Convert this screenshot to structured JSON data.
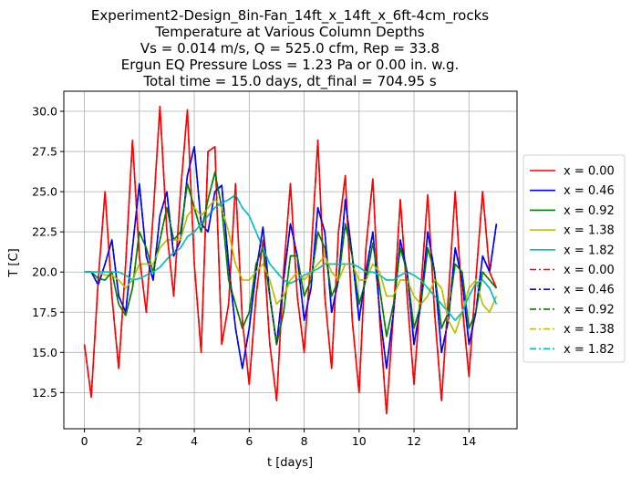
{
  "chart_data": {
    "type": "line",
    "title_lines": [
      "Experiment2-Design_8in-Fan_14ft_x_14ft_x_6ft-4cm_rocks",
      "Temperature at Various Column Depths",
      "Vs = 0.014 m/s, Q = 525.0 cfm, Rep = 33.8",
      "Ergun EQ Pressure Loss = 1.23 Pa or 0.00 in. w.g.",
      "Total time = 15.0 days, dt_final = 704.95 s"
    ],
    "xlabel": "t [days]",
    "ylabel": "T [C]",
    "xlim": [
      -0.75,
      15.75
    ],
    "ylim": [
      10.25,
      31.25
    ],
    "xticks": [
      0,
      2,
      4,
      6,
      8,
      10,
      12,
      14
    ],
    "xtick_labels": [
      "0",
      "2",
      "4",
      "6",
      "8",
      "10",
      "12",
      "14"
    ],
    "yticks": [
      12.5,
      15.0,
      17.5,
      20.0,
      22.5,
      25.0,
      27.5,
      30.0
    ],
    "ytick_labels": [
      "12.5",
      "15.0",
      "17.5",
      "20.0",
      "22.5",
      "25.0",
      "27.5",
      "30.0"
    ],
    "grid": true,
    "legend_placement": "right-outside",
    "x": [
      0,
      0.25,
      0.5,
      0.75,
      1,
      1.25,
      1.5,
      1.75,
      2,
      2.25,
      2.5,
      2.75,
      3,
      3.25,
      3.5,
      3.75,
      4,
      4.25,
      4.5,
      4.75,
      5,
      5.25,
      5.5,
      5.75,
      6,
      6.25,
      6.5,
      6.75,
      7,
      7.25,
      7.5,
      7.75,
      8,
      8.25,
      8.5,
      8.75,
      9,
      9.25,
      9.5,
      9.75,
      10,
      10.25,
      10.5,
      10.75,
      11,
      11.25,
      11.5,
      11.75,
      12,
      12.25,
      12.5,
      12.75,
      13,
      13.25,
      13.5,
      13.75,
      14,
      14.25,
      14.5,
      14.75,
      15
    ],
    "series": [
      {
        "name": "x = 0.00",
        "color": "#ff0000",
        "dash": "solid",
        "values": [
          15.5,
          12.2,
          19.5,
          25.0,
          18.5,
          14.0,
          20.5,
          28.2,
          21.0,
          17.5,
          23.5,
          30.3,
          22.5,
          18.5,
          25.0,
          30.1,
          20.5,
          15.0,
          27.5,
          27.8,
          15.5,
          18.0,
          25.5,
          17.0,
          13.0,
          18.5,
          22.0,
          15.5,
          12.0,
          20.0,
          25.5,
          18.5,
          15.0,
          21.0,
          28.2,
          18.5,
          14.0,
          22.5,
          26.0,
          17.0,
          12.5,
          21.5,
          25.8,
          17.0,
          11.2,
          17.5,
          24.5,
          18.5,
          13.0,
          19.0,
          24.8,
          17.5,
          12.0,
          18.5,
          25.0,
          18.0,
          13.5,
          19.5,
          25.0,
          20.0,
          19.0
        ]
      },
      {
        "name": "x = 0.46",
        "color": "#0000ff",
        "dash": "solid",
        "values": [
          20.0,
          20.0,
          19.2,
          20.5,
          22.0,
          18.5,
          17.5,
          21.5,
          25.5,
          21.0,
          19.5,
          23.5,
          25.0,
          21.0,
          22.0,
          26.0,
          27.8,
          23.0,
          22.5,
          25.0,
          25.4,
          20.5,
          16.5,
          14.0,
          16.5,
          20.0,
          22.8,
          18.5,
          15.5,
          19.5,
          23.0,
          21.0,
          17.0,
          19.0,
          24.0,
          22.5,
          17.5,
          19.5,
          24.5,
          21.0,
          17.0,
          20.0,
          22.5,
          17.5,
          14.0,
          17.5,
          22.0,
          20.0,
          15.5,
          18.0,
          22.5,
          20.0,
          15.0,
          17.0,
          21.5,
          19.5,
          15.5,
          17.5,
          21.0,
          20.0,
          23.0
        ]
      },
      {
        "name": "x = 0.92",
        "color": "#008000",
        "dash": "solid",
        "values": [
          20.0,
          20.0,
          19.6,
          19.5,
          20.0,
          18.0,
          17.3,
          19.0,
          22.5,
          21.5,
          20.0,
          22.0,
          24.0,
          22.0,
          22.5,
          25.5,
          24.0,
          22.5,
          24.5,
          26.2,
          24.0,
          19.5,
          18.0,
          16.5,
          17.5,
          20.5,
          21.5,
          18.5,
          15.5,
          17.5,
          21.0,
          21.0,
          18.5,
          19.5,
          22.5,
          21.5,
          18.5,
          19.5,
          23.0,
          21.0,
          18.0,
          19.5,
          21.8,
          19.0,
          16.0,
          18.0,
          21.5,
          20.0,
          16.5,
          18.0,
          21.5,
          20.0,
          16.5,
          17.5,
          20.5,
          20.0,
          16.5,
          17.5,
          20.0,
          19.5,
          19.0
        ]
      },
      {
        "name": "x = 1.38",
        "color": "#bfbf00",
        "dash": "solid",
        "values": [
          20.0,
          20.0,
          20.0,
          19.8,
          19.8,
          19.5,
          19.0,
          19.5,
          20.5,
          20.5,
          20.5,
          21.5,
          22.0,
          22.0,
          22.0,
          23.5,
          24.0,
          23.5,
          24.0,
          24.5,
          24.0,
          22.5,
          20.5,
          19.5,
          19.5,
          20.0,
          20.5,
          19.5,
          18.0,
          18.5,
          19.5,
          20.0,
          19.5,
          20.0,
          20.5,
          21.0,
          20.0,
          19.5,
          20.5,
          20.5,
          19.5,
          19.5,
          20.5,
          20.0,
          18.5,
          18.5,
          19.5,
          19.5,
          18.5,
          18.0,
          18.5,
          19.5,
          19.0,
          17.0,
          16.2,
          17.5,
          19.0,
          19.5,
          18.0,
          17.5,
          18.5
        ]
      },
      {
        "name": "x = 1.82",
        "color": "#00bfbf",
        "dash": "solid",
        "values": [
          20.0,
          20.0,
          20.0,
          20.0,
          20.0,
          20.0,
          19.8,
          19.5,
          19.6,
          19.8,
          20.0,
          20.3,
          20.8,
          21.2,
          21.5,
          22.2,
          22.5,
          23.0,
          23.5,
          24.0,
          24.3,
          24.5,
          24.8,
          24.0,
          23.5,
          22.5,
          21.5,
          20.5,
          20.0,
          19.5,
          19.3,
          19.5,
          19.8,
          20.0,
          20.2,
          20.5,
          20.5,
          20.5,
          20.5,
          20.5,
          20.3,
          20.0,
          20.0,
          19.8,
          19.5,
          19.5,
          19.8,
          20.0,
          19.8,
          19.5,
          19.0,
          18.5,
          18.0,
          17.5,
          17.0,
          17.5,
          18.5,
          19.3,
          19.5,
          19.0,
          18.0
        ]
      },
      {
        "name": "x = 0.00",
        "color": "#ff0000",
        "dash": "dashdot",
        "values": [
          15.5,
          12.2,
          19.5,
          25.0,
          18.5,
          14.0,
          20.5,
          28.2,
          21.0,
          17.5,
          23.5,
          30.3,
          22.5,
          18.5,
          25.0,
          30.1,
          20.5,
          15.0,
          27.5,
          27.8,
          15.5,
          18.0,
          25.5,
          17.0,
          13.0,
          18.5,
          22.0,
          15.5,
          12.0,
          20.0,
          25.5,
          18.5,
          15.0,
          21.0,
          28.2,
          18.5,
          14.0,
          22.5,
          26.0,
          17.0,
          12.5,
          21.5,
          25.8,
          17.0,
          11.2,
          17.5,
          24.5,
          18.5,
          13.0,
          19.0,
          24.8,
          17.5,
          12.0,
          18.5,
          25.0,
          18.0,
          13.5,
          19.5,
          25.0,
          20.0,
          19.0
        ]
      },
      {
        "name": "x = 0.46",
        "color": "#0000ff",
        "dash": "dashdot",
        "values": [
          20.0,
          20.0,
          19.2,
          20.5,
          22.0,
          18.5,
          17.5,
          21.5,
          25.5,
          21.0,
          19.5,
          23.5,
          25.0,
          21.0,
          22.0,
          26.0,
          27.8,
          23.0,
          22.5,
          25.0,
          25.4,
          20.5,
          16.5,
          14.0,
          16.5,
          20.0,
          22.8,
          18.5,
          15.5,
          19.5,
          23.0,
          21.0,
          17.0,
          19.0,
          24.0,
          22.5,
          17.5,
          19.5,
          24.5,
          21.0,
          17.0,
          20.0,
          22.5,
          17.5,
          14.0,
          17.5,
          22.0,
          20.0,
          15.5,
          18.0,
          22.5,
          20.0,
          15.0,
          17.0,
          21.5,
          19.5,
          15.5,
          17.5,
          21.0,
          20.0,
          23.0
        ]
      },
      {
        "name": "x = 0.92",
        "color": "#008000",
        "dash": "dashdot",
        "values": [
          20.0,
          20.0,
          19.6,
          19.5,
          20.0,
          18.0,
          17.3,
          19.0,
          22.5,
          21.5,
          20.0,
          22.0,
          24.0,
          22.0,
          22.5,
          25.5,
          24.0,
          22.5,
          24.5,
          26.2,
          24.0,
          19.5,
          18.0,
          16.5,
          17.5,
          20.5,
          21.5,
          18.5,
          15.5,
          17.5,
          21.0,
          21.0,
          18.5,
          19.5,
          22.5,
          21.5,
          18.5,
          19.5,
          23.0,
          21.0,
          18.0,
          19.5,
          21.8,
          19.0,
          16.0,
          18.0,
          21.5,
          20.0,
          16.5,
          18.0,
          21.5,
          20.0,
          16.5,
          17.5,
          20.5,
          20.0,
          16.5,
          17.5,
          20.0,
          19.5,
          19.0
        ]
      },
      {
        "name": "x = 1.38",
        "color": "#bfbf00",
        "dash": "dashdot",
        "values": [
          20.0,
          20.0,
          20.0,
          19.8,
          19.8,
          19.5,
          19.0,
          19.5,
          20.5,
          20.5,
          20.5,
          21.5,
          22.0,
          22.0,
          22.0,
          23.5,
          24.0,
          23.5,
          24.0,
          24.5,
          24.0,
          22.5,
          20.5,
          19.5,
          19.5,
          20.0,
          20.5,
          19.5,
          18.0,
          18.5,
          19.5,
          20.0,
          19.5,
          20.0,
          20.5,
          21.0,
          20.0,
          19.5,
          20.5,
          20.5,
          19.5,
          19.5,
          20.5,
          20.0,
          18.5,
          18.5,
          19.5,
          19.5,
          18.5,
          18.0,
          18.5,
          19.5,
          19.0,
          17.0,
          16.2,
          17.5,
          19.0,
          19.5,
          18.0,
          17.5,
          18.5
        ]
      },
      {
        "name": "x = 1.82",
        "color": "#00bfbf",
        "dash": "dashdot",
        "values": [
          20.0,
          20.0,
          20.0,
          20.0,
          20.0,
          20.0,
          19.8,
          19.5,
          19.6,
          19.8,
          20.0,
          20.3,
          20.8,
          21.2,
          21.5,
          22.2,
          22.5,
          23.0,
          23.5,
          24.0,
          24.3,
          24.5,
          24.8,
          24.0,
          23.5,
          22.5,
          21.5,
          20.5,
          20.0,
          19.5,
          19.3,
          19.5,
          19.8,
          20.0,
          20.2,
          20.5,
          20.5,
          20.5,
          20.5,
          20.5,
          20.3,
          20.0,
          20.0,
          19.8,
          19.5,
          19.5,
          19.8,
          20.0,
          19.8,
          19.5,
          19.0,
          18.5,
          18.0,
          17.5,
          17.0,
          17.5,
          18.5,
          19.3,
          19.5,
          19.0,
          18.0
        ]
      }
    ]
  }
}
